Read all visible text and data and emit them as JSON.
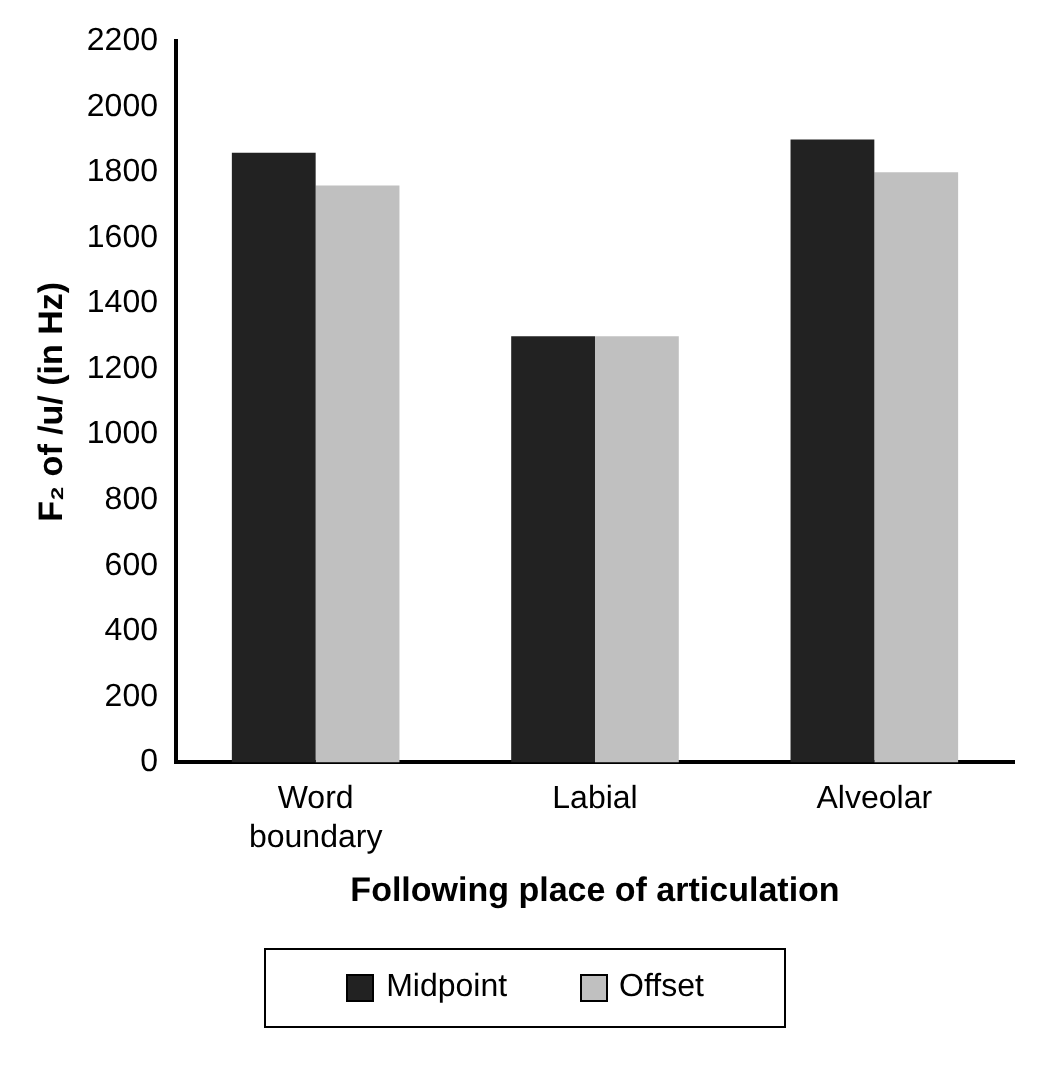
{
  "chart_data": {
    "type": "bar",
    "xlabel": "Following place of articulation",
    "ylabel": "F₂ of /u/ (in Hz)",
    "categories": [
      "Word boundary",
      "Labial",
      "Alveolar"
    ],
    "series": [
      {
        "name": "Midpoint",
        "color": "#222222",
        "values": [
          1860,
          1300,
          1900
        ]
      },
      {
        "name": "Offset",
        "color": "#c0c0c0",
        "values": [
          1760,
          1300,
          1800
        ]
      }
    ],
    "ylim": [
      0,
      2200
    ],
    "yticks": [
      0,
      200,
      400,
      600,
      800,
      1000,
      1200,
      1400,
      1600,
      1800,
      2000,
      2200
    ],
    "grid": false,
    "legend": "bottom"
  }
}
